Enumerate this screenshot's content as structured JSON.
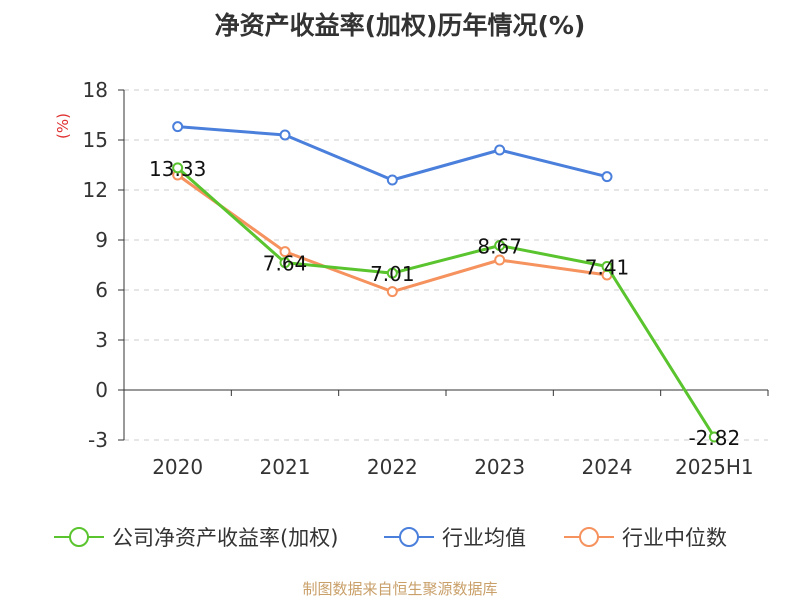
{
  "chart_data": {
    "type": "line",
    "title": "净资产收益率(加权)历年情况(%)",
    "ylabel": "(%)",
    "xlabel": "",
    "categories": [
      "2020",
      "2021",
      "2022",
      "2023",
      "2024",
      "2025H1"
    ],
    "ylim": [
      -3,
      18
    ],
    "yticks": [
      -3,
      0,
      3,
      6,
      9,
      12,
      15,
      18
    ],
    "grid": true,
    "legend_position": "bottom",
    "series": [
      {
        "name": "公司净资产收益率(加权)",
        "color": "#5ac42e",
        "values": [
          13.33,
          7.64,
          7.01,
          8.67,
          7.41,
          -2.82
        ],
        "labels": [
          "13.33",
          "7.64",
          "7.01",
          "8.67",
          "7.41",
          "-2.82"
        ]
      },
      {
        "name": "行业均值",
        "color": "#4a7fdc",
        "values": [
          15.8,
          15.3,
          12.6,
          14.4,
          12.8,
          null
        ]
      },
      {
        "name": "行业中位数",
        "color": "#f5925e",
        "values": [
          12.9,
          8.3,
          5.9,
          7.8,
          6.9,
          null
        ]
      }
    ]
  },
  "source": "制图数据来自恒生聚源数据库"
}
